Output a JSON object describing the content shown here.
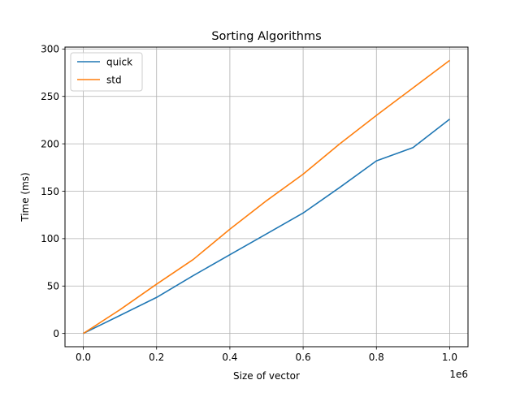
{
  "chart_data": {
    "type": "line",
    "title": "Sorting Algorithms",
    "xlabel": "Size of vector",
    "ylabel": "Time (ms)",
    "x_offset_label": "1e6",
    "xlim": [
      -50000,
      1050000
    ],
    "ylim": [
      -14,
      302
    ],
    "x_ticks": [
      0,
      200000,
      400000,
      600000,
      800000,
      1000000
    ],
    "x_tick_labels": [
      "0.0",
      "0.2",
      "0.4",
      "0.6",
      "0.8",
      "1.0"
    ],
    "y_ticks": [
      0,
      50,
      100,
      150,
      200,
      250,
      300
    ],
    "y_tick_labels": [
      "0",
      "50",
      "100",
      "150",
      "200",
      "250",
      "300"
    ],
    "grid": true,
    "legend_position": "top-left",
    "x": [
      0,
      100000,
      200000,
      300000,
      400000,
      500000,
      600000,
      700000,
      800000,
      900000,
      1000000
    ],
    "series": [
      {
        "name": "quick",
        "color": "#1f77b4",
        "values": [
          0,
          19,
          38,
          61,
          83,
          105,
          127,
          154,
          182,
          196,
          226
        ]
      },
      {
        "name": "std",
        "color": "#ff7f0e",
        "values": [
          0,
          25,
          52,
          78,
          110,
          140,
          168,
          200,
          230,
          259,
          288
        ]
      }
    ]
  }
}
